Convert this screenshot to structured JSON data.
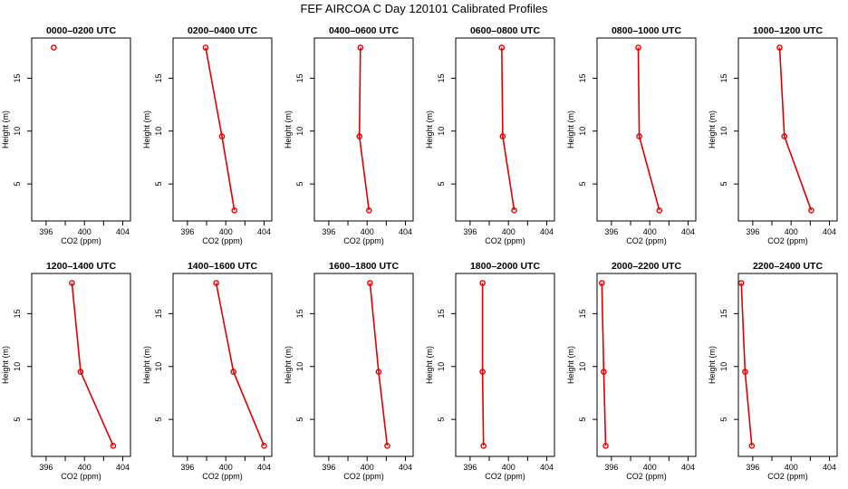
{
  "title": "FEF AIRCOA C  Day 120101  Calibrated Profiles",
  "colors": {
    "series": "#dd0000",
    "axis": "#000000"
  },
  "chart_data": [
    {
      "type": "line",
      "title": "0000–0200 UTC",
      "xlabel": "CO2 (ppm)",
      "ylabel": "Height (m)",
      "xlim": [
        394.5,
        404.8
      ],
      "ylim": [
        1.5,
        18.8
      ],
      "xticks": [
        396,
        400,
        404
      ],
      "yticks": [
        5,
        10,
        15
      ],
      "points": [
        [
          396.8,
          17.9
        ]
      ]
    },
    {
      "type": "line",
      "title": "0200–0400 UTC",
      "xlabel": "CO2 (ppm)",
      "ylabel": "Height (m)",
      "xlim": [
        394.5,
        404.8
      ],
      "ylim": [
        1.5,
        18.8
      ],
      "xticks": [
        396,
        400,
        404
      ],
      "yticks": [
        5,
        10,
        15
      ],
      "points": [
        [
          397.9,
          17.9
        ],
        [
          399.6,
          9.5
        ],
        [
          400.9,
          2.5
        ]
      ]
    },
    {
      "type": "line",
      "title": "0400–0600 UTC",
      "xlabel": "CO2 (ppm)",
      "ylabel": "Height (m)",
      "xlim": [
        394.5,
        404.8
      ],
      "ylim": [
        1.5,
        18.8
      ],
      "xticks": [
        396,
        400,
        404
      ],
      "yticks": [
        5,
        10,
        15
      ],
      "points": [
        [
          399.3,
          17.9
        ],
        [
          399.2,
          9.5
        ],
        [
          400.2,
          2.5
        ]
      ]
    },
    {
      "type": "line",
      "title": "0600–0800 UTC",
      "xlabel": "CO2 (ppm)",
      "ylabel": "Height (m)",
      "xlim": [
        394.5,
        404.8
      ],
      "ylim": [
        1.5,
        18.8
      ],
      "xticks": [
        396,
        400,
        404
      ],
      "yticks": [
        5,
        10,
        15
      ],
      "points": [
        [
          399.3,
          17.9
        ],
        [
          399.4,
          9.5
        ],
        [
          400.6,
          2.5
        ]
      ]
    },
    {
      "type": "line",
      "title": "0800–1000 UTC",
      "xlabel": "CO2 (ppm)",
      "ylabel": "Height (m)",
      "xlim": [
        394.5,
        404.8
      ],
      "ylim": [
        1.5,
        18.8
      ],
      "xticks": [
        396,
        400,
        404
      ],
      "yticks": [
        5,
        10,
        15
      ],
      "points": [
        [
          398.8,
          17.9
        ],
        [
          398.9,
          9.5
        ],
        [
          401.0,
          2.5
        ]
      ]
    },
    {
      "type": "line",
      "title": "1000–1200 UTC",
      "xlabel": "CO2 (ppm)",
      "ylabel": "Height (m)",
      "xlim": [
        394.5,
        404.8
      ],
      "ylim": [
        1.5,
        18.8
      ],
      "xticks": [
        396,
        400,
        404
      ],
      "yticks": [
        5,
        10,
        15
      ],
      "points": [
        [
          398.8,
          17.9
        ],
        [
          399.3,
          9.5
        ],
        [
          402.1,
          2.5
        ]
      ]
    },
    {
      "type": "line",
      "title": "1200–1400 UTC",
      "xlabel": "CO2 (ppm)",
      "ylabel": "Height (m)",
      "xlim": [
        394.5,
        404.8
      ],
      "ylim": [
        1.5,
        18.8
      ],
      "xticks": [
        396,
        400,
        404
      ],
      "yticks": [
        5,
        10,
        15
      ],
      "points": [
        [
          398.7,
          17.9
        ],
        [
          399.6,
          9.5
        ],
        [
          403.0,
          2.5
        ]
      ]
    },
    {
      "type": "line",
      "title": "1400–1600 UTC",
      "xlabel": "CO2 (ppm)",
      "ylabel": "Height (m)",
      "xlim": [
        394.5,
        404.8
      ],
      "ylim": [
        1.5,
        18.8
      ],
      "xticks": [
        396,
        400,
        404
      ],
      "yticks": [
        5,
        10,
        15
      ],
      "points": [
        [
          399.0,
          17.9
        ],
        [
          400.8,
          9.5
        ],
        [
          404.0,
          2.5
        ]
      ]
    },
    {
      "type": "line",
      "title": "1600–1800 UTC",
      "xlabel": "CO2 (ppm)",
      "ylabel": "Height (m)",
      "xlim": [
        394.5,
        404.8
      ],
      "ylim": [
        1.5,
        18.8
      ],
      "xticks": [
        396,
        400,
        404
      ],
      "yticks": [
        5,
        10,
        15
      ],
      "points": [
        [
          400.3,
          17.9
        ],
        [
          401.2,
          9.5
        ],
        [
          402.1,
          2.5
        ]
      ]
    },
    {
      "type": "line",
      "title": "1800–2000 UTC",
      "xlabel": "CO2 (ppm)",
      "ylabel": "Height (m)",
      "xlim": [
        394.5,
        404.8
      ],
      "ylim": [
        1.5,
        18.8
      ],
      "xticks": [
        396,
        400,
        404
      ],
      "yticks": [
        5,
        10,
        15
      ],
      "points": [
        [
          397.3,
          17.9
        ],
        [
          397.3,
          9.5
        ],
        [
          397.4,
          2.5
        ]
      ]
    },
    {
      "type": "line",
      "title": "2000–2200 UTC",
      "xlabel": "CO2 (ppm)",
      "ylabel": "Height (m)",
      "xlim": [
        394.5,
        404.8
      ],
      "ylim": [
        1.5,
        18.8
      ],
      "xticks": [
        396,
        400,
        404
      ],
      "yticks": [
        5,
        10,
        15
      ],
      "points": [
        [
          395.0,
          17.9
        ],
        [
          395.2,
          9.5
        ],
        [
          395.4,
          2.5
        ]
      ]
    },
    {
      "type": "line",
      "title": "2200–2400 UTC",
      "xlabel": "CO2 (ppm)",
      "ylabel": "Height (m)",
      "xlim": [
        394.5,
        404.8
      ],
      "ylim": [
        1.5,
        18.8
      ],
      "xticks": [
        396,
        400,
        404
      ],
      "yticks": [
        5,
        10,
        15
      ],
      "points": [
        [
          394.8,
          17.9
        ],
        [
          395.2,
          9.5
        ],
        [
          395.9,
          2.5
        ]
      ]
    }
  ]
}
